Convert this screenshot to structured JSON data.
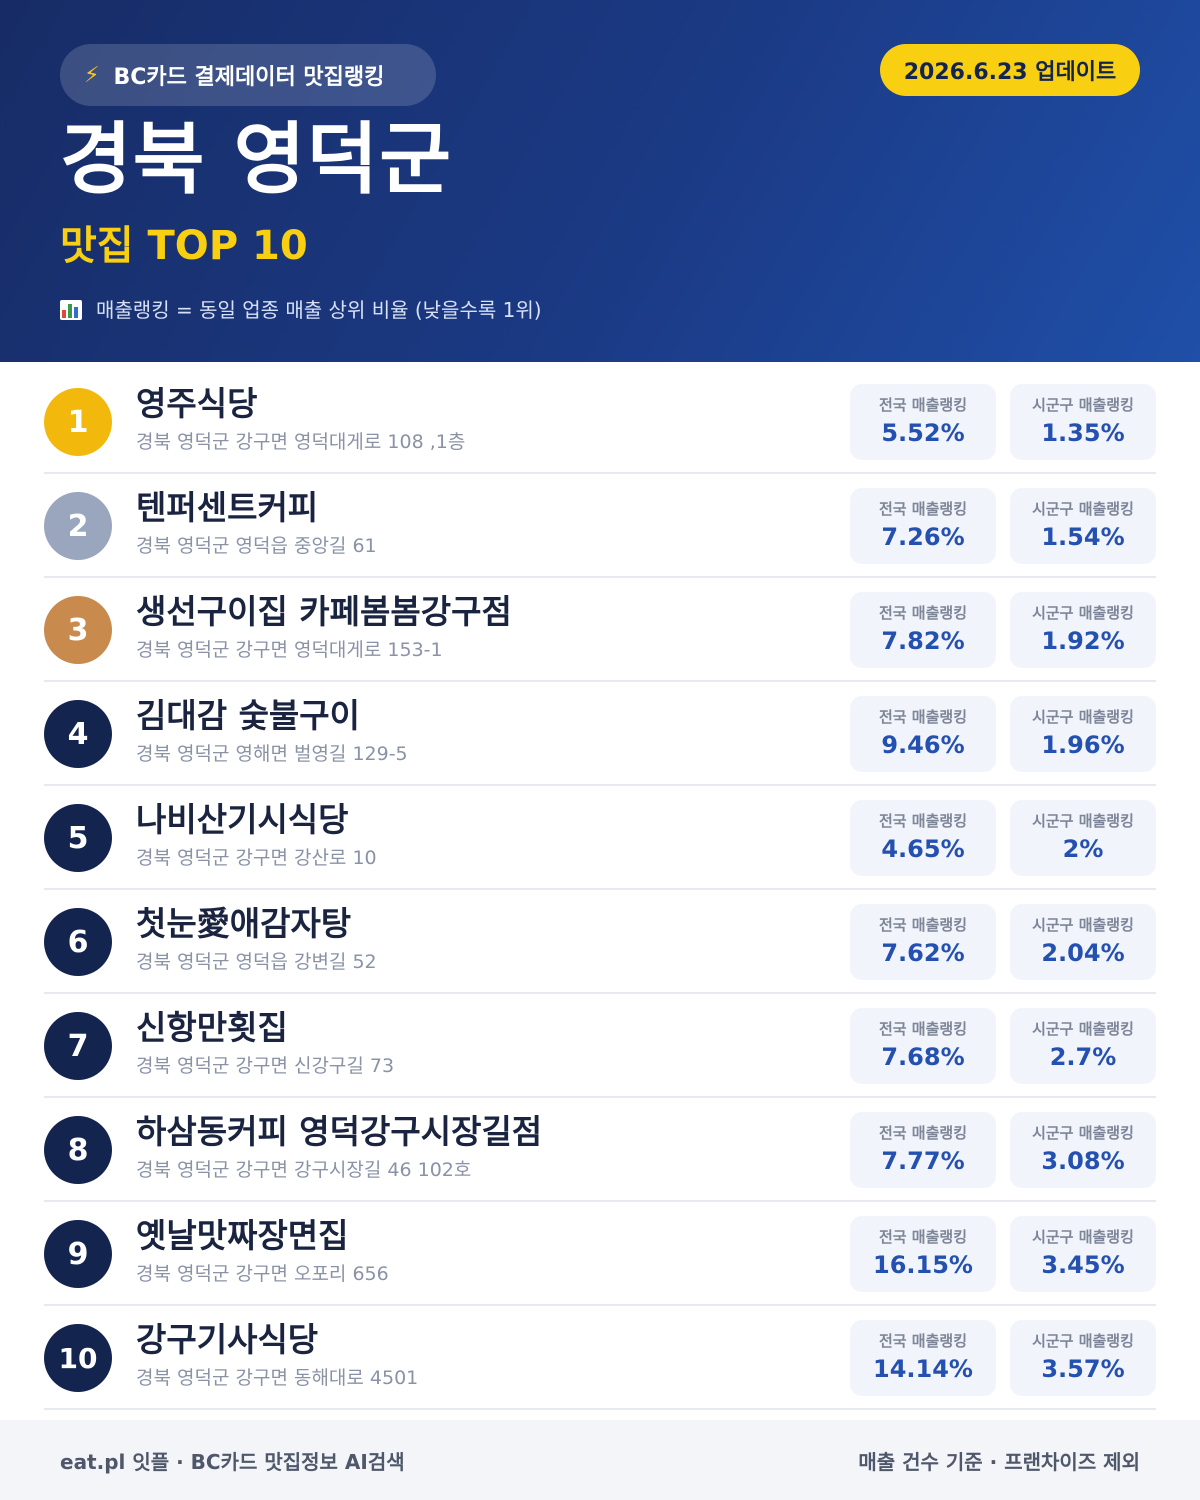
{
  "header": {
    "badge_icon": "lightning-icon",
    "badge_text": "BC카드 결제데이터 맛집랭킹",
    "update_text": "2026.6.23 업데이트",
    "region": "경북 영덕군",
    "subtitle": "맛집 TOP 10",
    "note_icon": "bar-chart-icon",
    "note": "매출랭킹 = 동일 업종 매출 상위 비율 (낮을수록 1위)"
  },
  "colors": {
    "gold": "#f2b90c",
    "silver": "#9aa6bd",
    "bronze": "#c98a4e",
    "navy": "#13244f",
    "accent_yellow": "#f9cf12",
    "value_blue": "#2450b0"
  },
  "stat_labels": {
    "national": "전국 매출랭킹",
    "local": "시군구 매출랭킹"
  },
  "restaurants": [
    {
      "rank": "1",
      "name": "영주식당",
      "address": "경북 영덕군 강구면 영덕대게로 108 ,1층",
      "national": "5.52%",
      "local": "1.35%"
    },
    {
      "rank": "2",
      "name": "텐퍼센트커피",
      "address": "경북 영덕군 영덕읍 중앙길 61",
      "national": "7.26%",
      "local": "1.54%"
    },
    {
      "rank": "3",
      "name": "생선구이집 카페봄봄강구점",
      "address": "경북 영덕군 강구면 영덕대게로 153-1",
      "national": "7.82%",
      "local": "1.92%"
    },
    {
      "rank": "4",
      "name": "김대감 숯불구이",
      "address": "경북 영덕군 영해면 벌영길 129-5",
      "national": "9.46%",
      "local": "1.96%"
    },
    {
      "rank": "5",
      "name": "나비산기시식당",
      "address": "경북 영덕군 강구면 강산로 10",
      "national": "4.65%",
      "local": "2%"
    },
    {
      "rank": "6",
      "name": "첫눈愛애감자탕",
      "address": "경북 영덕군 영덕읍 강변길 52",
      "national": "7.62%",
      "local": "2.04%"
    },
    {
      "rank": "7",
      "name": "신항만횟집",
      "address": "경북 영덕군 강구면 신강구길 73",
      "national": "7.68%",
      "local": "2.7%"
    },
    {
      "rank": "8",
      "name": "하삼동커피 영덕강구시장길점",
      "address": "경북 영덕군 강구면 강구시장길 46 102호",
      "national": "7.77%",
      "local": "3.08%"
    },
    {
      "rank": "9",
      "name": "옛날맛짜장면집",
      "address": "경북 영덕군 강구면 오포리 656",
      "national": "16.15%",
      "local": "3.45%"
    },
    {
      "rank": "10",
      "name": "강구기사식당",
      "address": "경북 영덕군 강구면 동해대로 4501",
      "national": "14.14%",
      "local": "3.57%"
    }
  ],
  "footer": {
    "left": "eat.pl 잇플 · BC카드 맛집정보 AI검색",
    "right": "매출 건수 기준 · 프랜차이즈 제외"
  }
}
